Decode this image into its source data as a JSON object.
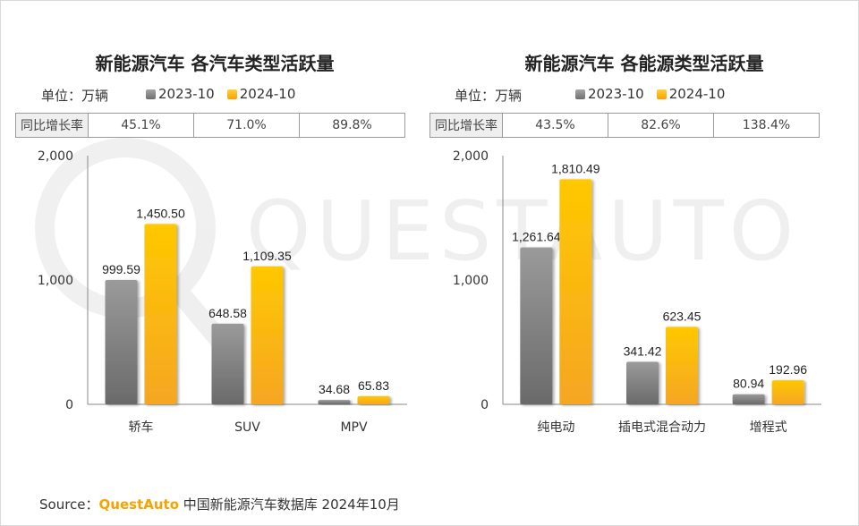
{
  "source": {
    "prefix": "Source：",
    "brand": "QuestAuto",
    "suffix": " 中国新能源汽车数据库 2024年10月"
  },
  "watermark_text": "QUESTAUTO",
  "colors": {
    "gray": "#8c8c8c",
    "yellow": "#ffc000"
  },
  "chart_data": [
    {
      "type": "bar",
      "title": "新能源汽车 各汽车类型活跃量",
      "unit_label": "单位：万辆",
      "yoy_label": "同比增长率",
      "yoy": [
        "45.1%",
        "71.0%",
        "89.8%"
      ],
      "categories": [
        "轿车",
        "SUV",
        "MPV"
      ],
      "series": [
        {
          "name": "2023-10",
          "values": [
            999.59,
            648.58,
            34.68
          ],
          "labels": [
            "999.59",
            "648.58",
            "34.68"
          ]
        },
        {
          "name": "2024-10",
          "values": [
            1450.5,
            1109.35,
            65.83
          ],
          "labels": [
            "1,450.50",
            "1,109.35",
            "65.83"
          ]
        }
      ],
      "ylim": [
        0,
        2000
      ],
      "yticks": [
        0,
        1000,
        2000
      ],
      "ytick_labels": [
        "0",
        "1,000",
        "2,000"
      ]
    },
    {
      "type": "bar",
      "title": "新能源汽车 各能源类型活跃量",
      "unit_label": "单位：万辆",
      "yoy_label": "同比增长率",
      "yoy": [
        "43.5%",
        "82.6%",
        "138.4%"
      ],
      "categories": [
        "纯电动",
        "插电式混合动力",
        "增程式"
      ],
      "series": [
        {
          "name": "2023-10",
          "values": [
            1261.64,
            341.42,
            80.94
          ],
          "labels": [
            "1,261.64",
            "341.42",
            "80.94"
          ]
        },
        {
          "name": "2024-10",
          "values": [
            1810.49,
            623.45,
            192.96
          ],
          "labels": [
            "1,810.49",
            "623.45",
            "192.96"
          ]
        }
      ],
      "ylim": [
        0,
        2000
      ],
      "yticks": [
        0,
        1000,
        2000
      ],
      "ytick_labels": [
        "0",
        "1,000",
        "2,000"
      ]
    }
  ]
}
